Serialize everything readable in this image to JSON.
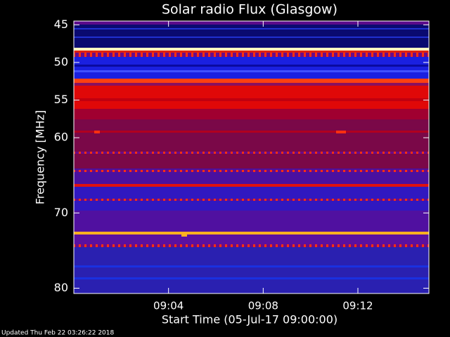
{
  "chart_data": {
    "type": "spectrogram",
    "title": "Solar radio Flux (Glasgow)",
    "xlabel": "Start Time (05-Jul-17 09:00:00)",
    "ylabel": "Frequency [MHz]",
    "footer": "Updated Thu Feb 22 03:26:22 2018",
    "xlim": [
      0,
      15
    ],
    "xticks": [
      {
        "value": 4,
        "label": "09:04"
      },
      {
        "value": 8,
        "label": "09:08"
      },
      {
        "value": 12,
        "label": "09:12"
      }
    ],
    "ylim": [
      44.5,
      80.7
    ],
    "yticks": [
      45,
      50,
      55,
      60,
      70,
      80
    ]
  }
}
